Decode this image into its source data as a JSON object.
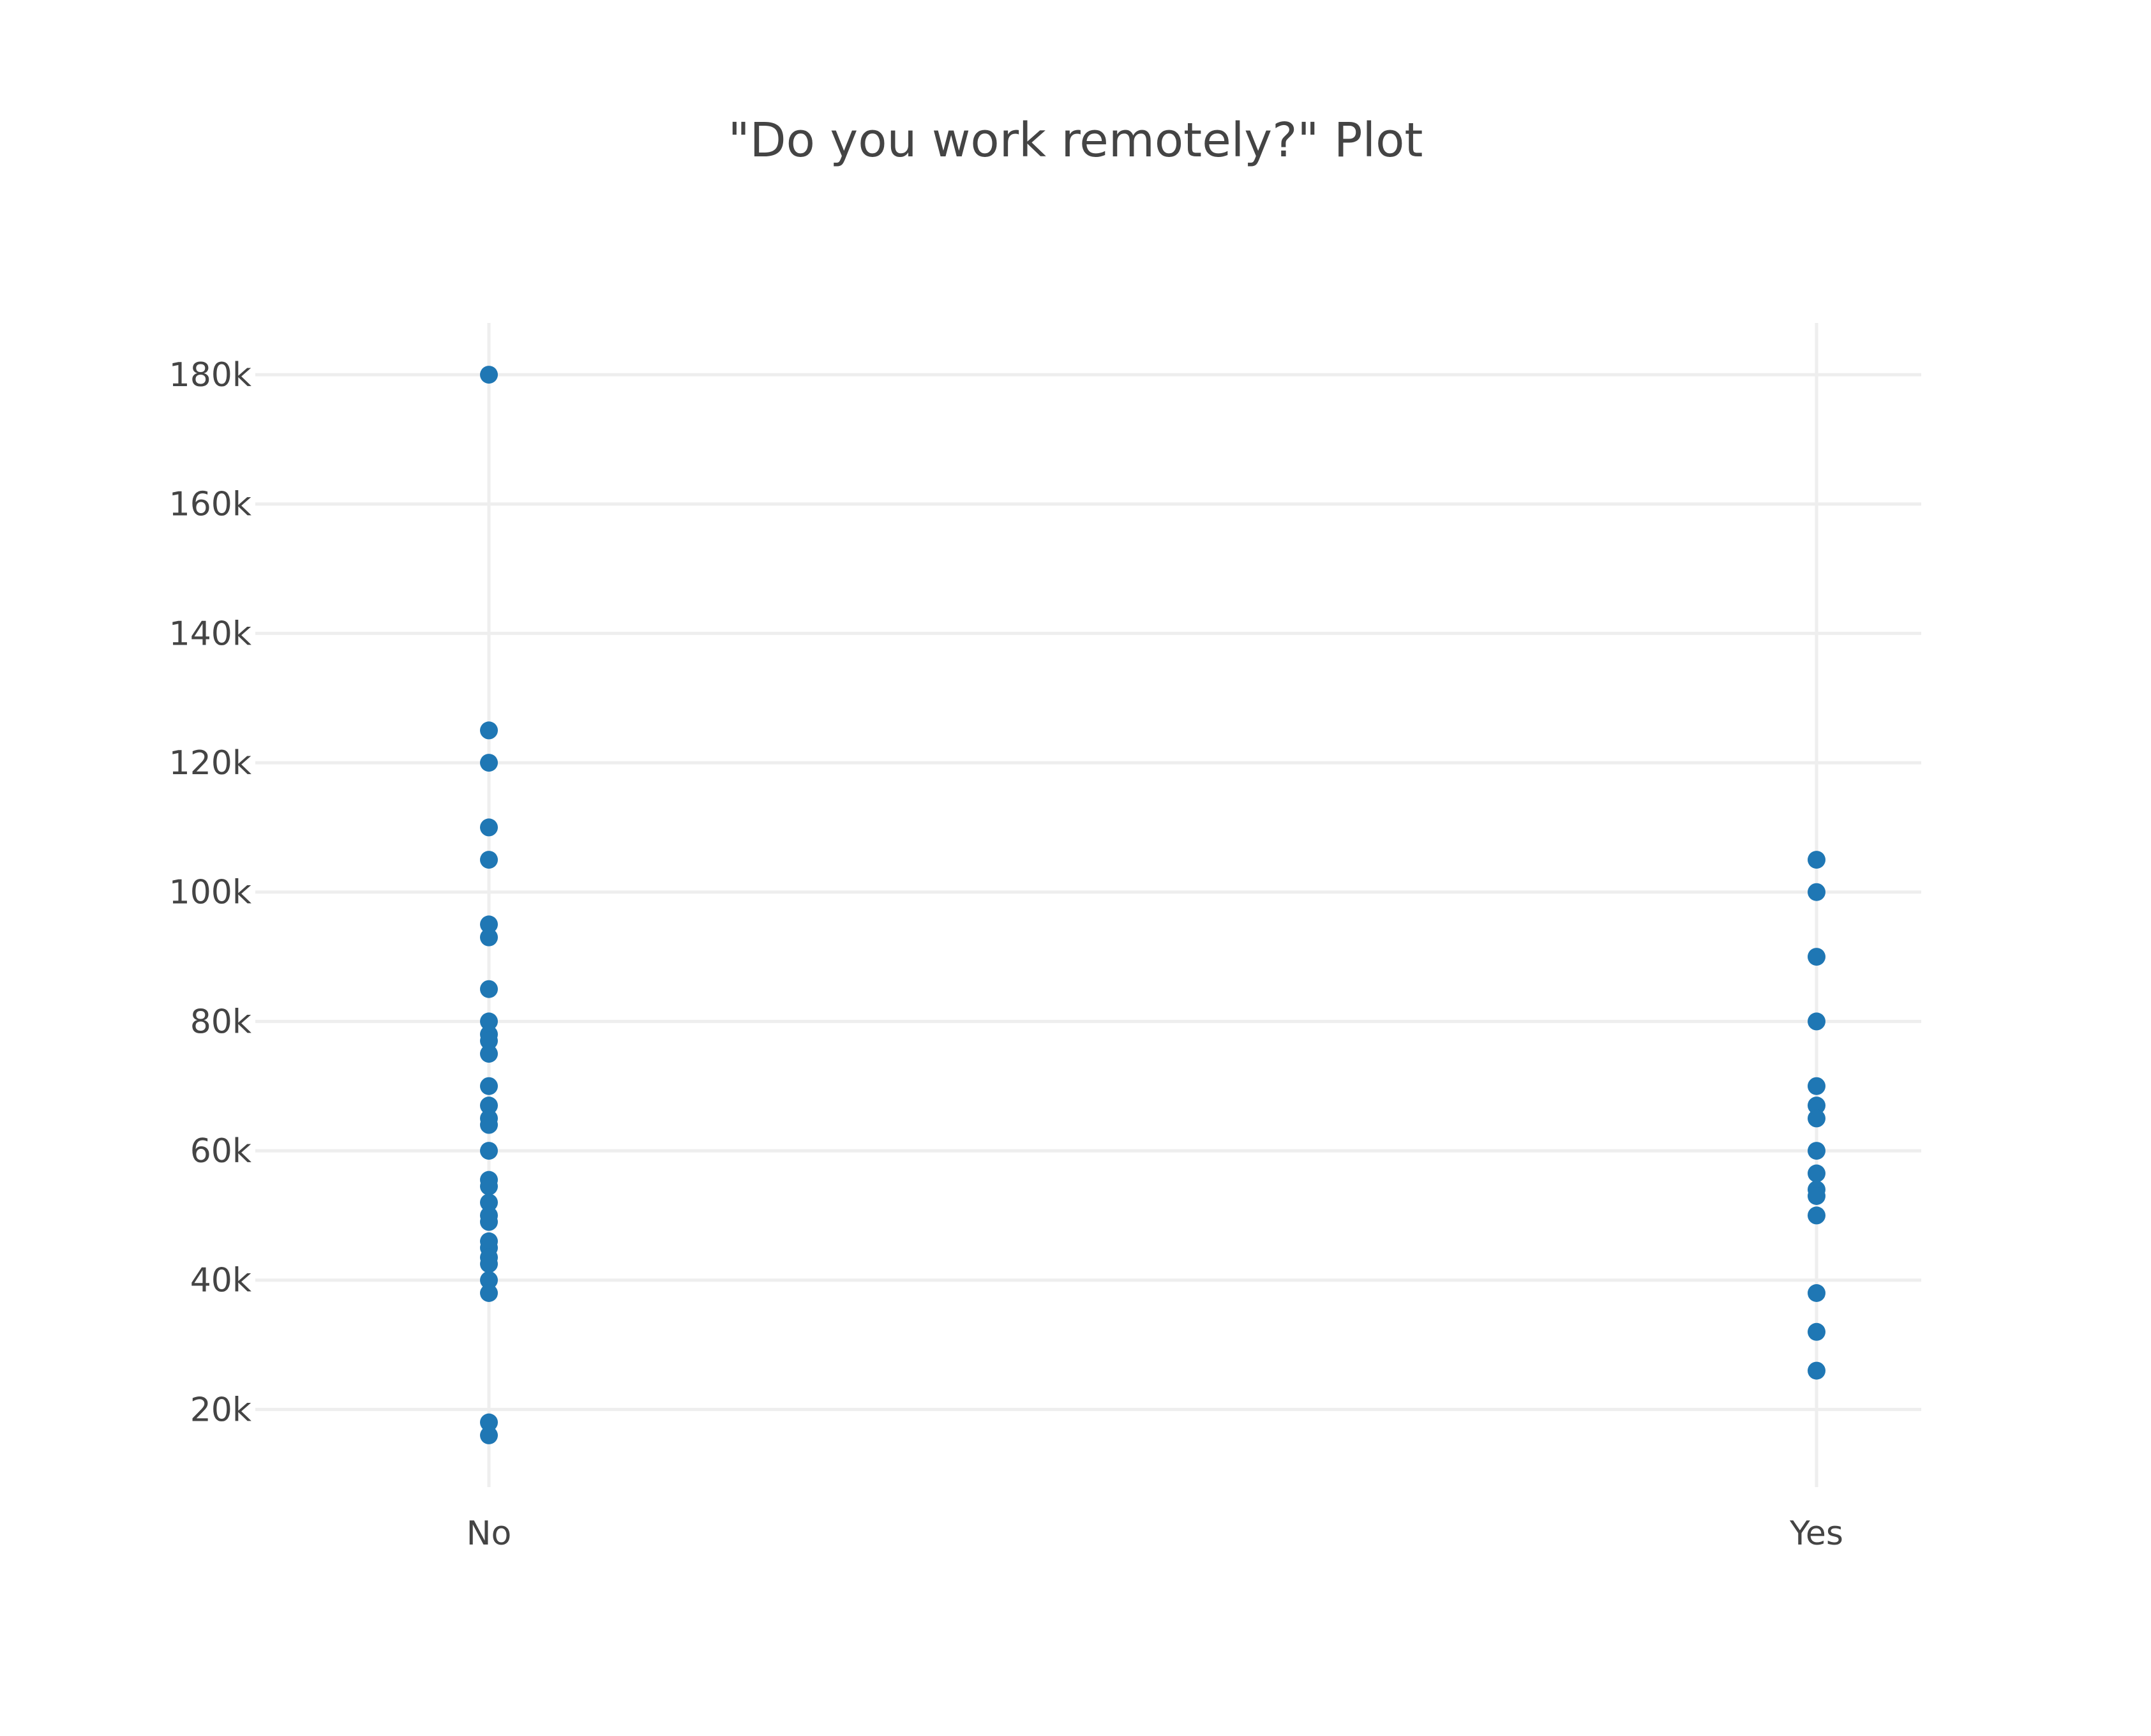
{
  "chart_data": {
    "type": "scatter",
    "title": "\"Do you work remotely?\" Plot",
    "xlabel": "",
    "ylabel": "",
    "categories": [
      "No",
      "Yes"
    ],
    "grid": true,
    "ylim": [
      8000,
      188000
    ],
    "yticks": [
      20000,
      40000,
      60000,
      80000,
      100000,
      120000,
      140000,
      160000,
      180000
    ],
    "ytick_labels": [
      "20k",
      "40k",
      "60k",
      "80k",
      "100k",
      "120k",
      "140k",
      "160k",
      "180k"
    ],
    "marker_color": "#1f77b4",
    "points": [
      {
        "x": "No",
        "y": 180000
      },
      {
        "x": "No",
        "y": 125000
      },
      {
        "x": "No",
        "y": 120000
      },
      {
        "x": "No",
        "y": 110000
      },
      {
        "x": "No",
        "y": 105000
      },
      {
        "x": "No",
        "y": 95000
      },
      {
        "x": "No",
        "y": 93000
      },
      {
        "x": "No",
        "y": 85000
      },
      {
        "x": "No",
        "y": 80000
      },
      {
        "x": "No",
        "y": 78000
      },
      {
        "x": "No",
        "y": 77000
      },
      {
        "x": "No",
        "y": 75000
      },
      {
        "x": "No",
        "y": 70000
      },
      {
        "x": "No",
        "y": 67000
      },
      {
        "x": "No",
        "y": 65000
      },
      {
        "x": "No",
        "y": 64000
      },
      {
        "x": "No",
        "y": 60000
      },
      {
        "x": "No",
        "y": 55500
      },
      {
        "x": "No",
        "y": 54500
      },
      {
        "x": "No",
        "y": 52000
      },
      {
        "x": "No",
        "y": 50000
      },
      {
        "x": "No",
        "y": 49000
      },
      {
        "x": "No",
        "y": 46000
      },
      {
        "x": "No",
        "y": 45000
      },
      {
        "x": "No",
        "y": 43500
      },
      {
        "x": "No",
        "y": 42500
      },
      {
        "x": "No",
        "y": 40000
      },
      {
        "x": "No",
        "y": 38000
      },
      {
        "x": "No",
        "y": 18000
      },
      {
        "x": "No",
        "y": 16000
      },
      {
        "x": "Yes",
        "y": 105000
      },
      {
        "x": "Yes",
        "y": 100000
      },
      {
        "x": "Yes",
        "y": 90000
      },
      {
        "x": "Yes",
        "y": 80000
      },
      {
        "x": "Yes",
        "y": 70000
      },
      {
        "x": "Yes",
        "y": 67000
      },
      {
        "x": "Yes",
        "y": 65000
      },
      {
        "x": "Yes",
        "y": 60000
      },
      {
        "x": "Yes",
        "y": 56500
      },
      {
        "x": "Yes",
        "y": 54000
      },
      {
        "x": "Yes",
        "y": 53000
      },
      {
        "x": "Yes",
        "y": 50000
      },
      {
        "x": "Yes",
        "y": 38000
      },
      {
        "x": "Yes",
        "y": 32000
      },
      {
        "x": "Yes",
        "y": 26000
      }
    ]
  }
}
